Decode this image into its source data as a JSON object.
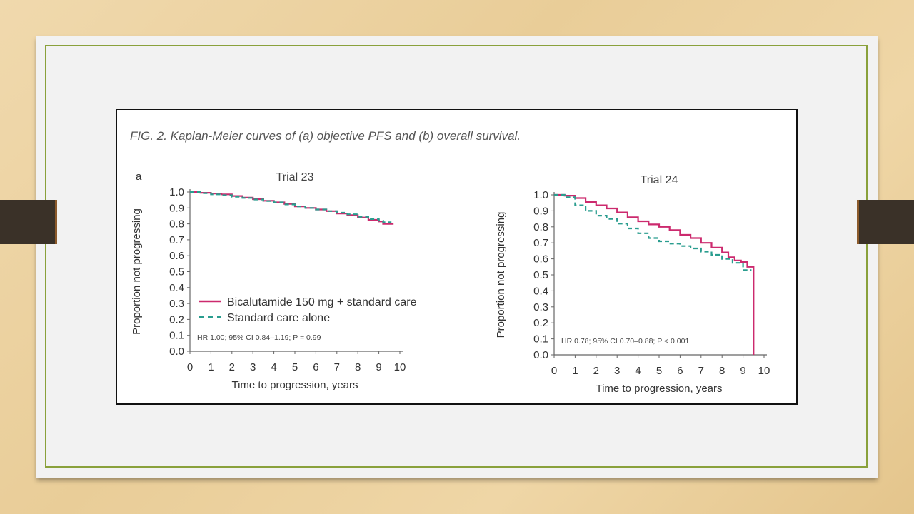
{
  "figure": {
    "caption": "FIG. 2. Kaplan-Meier curves of (a) objective PFS and (b) overall survival.",
    "panel_letter": "a"
  },
  "colors": {
    "bicalutamide": "#cc2a6e",
    "standard": "#2a9d8f",
    "axis": "#666666",
    "frame": "#8aa13b"
  },
  "chart_data": [
    {
      "type": "line",
      "title": "Trial 23",
      "xlabel": "Time to progression, years",
      "ylabel": "Proportion not progressing",
      "xlim": [
        0,
        10
      ],
      "ylim": [
        0,
        1.0
      ],
      "xticks": [
        "0",
        "1",
        "2",
        "3",
        "4",
        "5",
        "6",
        "7",
        "8",
        "9",
        "10"
      ],
      "yticks": [
        "0.0",
        "0.1",
        "0.2",
        "0.3",
        "0.4",
        "0.5",
        "0.6",
        "0.7",
        "0.8",
        "0.9",
        "1.0"
      ],
      "legend": {
        "placement": "lower-left",
        "entries": [
          "Bicalutamide 150 mg + standard care",
          "Standard care alone"
        ]
      },
      "annotation": "HR 1.00; 95% CI 0.84–1.19;  P = 0.99",
      "series": [
        {
          "name": "Bicalutamide 150 mg + standard care",
          "style": "solid",
          "x": [
            0,
            0.5,
            1,
            1.5,
            2,
            2.5,
            3,
            3.5,
            4,
            4.5,
            5,
            5.5,
            6,
            6.5,
            7,
            7.5,
            8,
            8.5,
            9,
            9.2,
            9.7
          ],
          "y": [
            1.0,
            0.995,
            0.99,
            0.985,
            0.975,
            0.965,
            0.955,
            0.945,
            0.935,
            0.925,
            0.91,
            0.9,
            0.89,
            0.88,
            0.865,
            0.855,
            0.84,
            0.825,
            0.815,
            0.8,
            0.8
          ]
        },
        {
          "name": "Standard care alone",
          "style": "dashed",
          "x": [
            0,
            0.5,
            1,
            1.5,
            2,
            2.5,
            3,
            3.5,
            4,
            4.5,
            5,
            5.5,
            6,
            6.5,
            7,
            7.5,
            8,
            8.5,
            9,
            9.2,
            9.6
          ],
          "y": [
            1.0,
            0.993,
            0.985,
            0.98,
            0.97,
            0.963,
            0.953,
            0.943,
            0.935,
            0.922,
            0.91,
            0.9,
            0.89,
            0.88,
            0.87,
            0.86,
            0.845,
            0.83,
            0.82,
            0.81,
            0.81
          ]
        }
      ]
    },
    {
      "type": "line",
      "title": "Trial 24",
      "xlabel": "Time to progression, years",
      "ylabel": "Proportion not progressing",
      "xlim": [
        0,
        10
      ],
      "ylim": [
        0,
        1.0
      ],
      "xticks": [
        "0",
        "1",
        "2",
        "3",
        "4",
        "5",
        "6",
        "7",
        "8",
        "9",
        "10"
      ],
      "yticks": [
        "0.0",
        "0.1",
        "0.2",
        "0.3",
        "0.4",
        "0.5",
        "0.6",
        "0.7",
        "0.8",
        "0.9",
        "1.0"
      ],
      "annotation": "HR 0.78; 95% CI 0.70–0.88; P < 0.001",
      "series": [
        {
          "name": "Bicalutamide 150 mg + standard care",
          "style": "solid",
          "x": [
            0,
            0.5,
            1,
            1.5,
            2,
            2.5,
            3,
            3.5,
            4,
            4.5,
            5,
            5.5,
            6,
            6.5,
            7,
            7.5,
            8,
            8.3,
            8.6,
            8.9,
            9.2,
            9.3,
            9.3,
            9.5,
            9.5
          ],
          "y": [
            1.0,
            0.995,
            0.98,
            0.955,
            0.935,
            0.915,
            0.89,
            0.86,
            0.835,
            0.815,
            0.8,
            0.78,
            0.75,
            0.73,
            0.7,
            0.67,
            0.64,
            0.61,
            0.59,
            0.58,
            0.55,
            0.55,
            0.55,
            0.55,
            0.0
          ]
        },
        {
          "name": "Standard care alone",
          "style": "dashed",
          "x": [
            0,
            0.5,
            1,
            1.5,
            2,
            2.5,
            3,
            3.5,
            4,
            4.5,
            5,
            5.5,
            6,
            6.5,
            7,
            7.5,
            8,
            8.5,
            9,
            9.4
          ],
          "y": [
            1.0,
            0.985,
            0.935,
            0.9,
            0.87,
            0.85,
            0.82,
            0.79,
            0.76,
            0.73,
            0.71,
            0.695,
            0.68,
            0.665,
            0.645,
            0.625,
            0.6,
            0.575,
            0.53,
            0.53
          ]
        }
      ]
    }
  ]
}
